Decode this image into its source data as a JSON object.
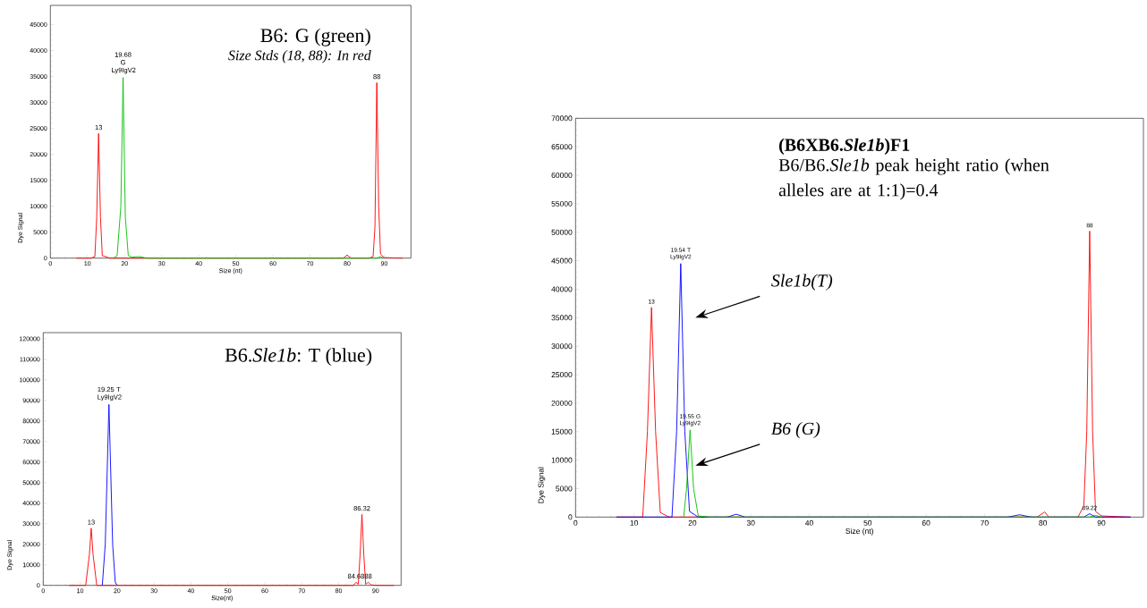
{
  "chart_data": [
    {
      "type": "line",
      "title": "B6: G (green)",
      "subtitle": "*Size Stds (18, 88): In red*",
      "xlabel": "Size (nt)",
      "ylabel": "Dye Signal",
      "xlim": [
        0,
        97.2
      ],
      "ylim": [
        0,
        48700
      ],
      "xticks": [
        0,
        10,
        20,
        30,
        40,
        50,
        60,
        70,
        80,
        90
      ],
      "yticks": [
        0,
        5000,
        10000,
        15000,
        20000,
        25000,
        30000,
        35000,
        40000,
        45000
      ],
      "annotations": [
        {
          "text": "13",
          "x": 13,
          "y": 24000
        },
        {
          "text": "19.68 G Ly9IgV2",
          "x": 19.6,
          "y": 34800
        },
        {
          "text": "88",
          "x": 88,
          "y": 33800
        }
      ],
      "series": [
        {
          "color": "#ff0000",
          "x": [
            7,
            11,
            12,
            12.5,
            13,
            13.5,
            14,
            16,
            79,
            80,
            81,
            86,
            87,
            87.5,
            88,
            88.5,
            89,
            90,
            95
          ],
          "values": [
            0,
            0,
            300,
            8000,
            24000,
            8000,
            500,
            0,
            0,
            600,
            0,
            0,
            300,
            6000,
            33800,
            10000,
            800,
            100,
            0
          ]
        },
        {
          "color": "#00c000",
          "x": [
            17,
            18,
            19,
            19.6,
            20.2,
            21,
            22,
            24,
            26,
            88,
            89,
            90
          ],
          "values": [
            0,
            500,
            10000,
            34800,
            8000,
            500,
            200,
            300,
            0,
            0,
            300,
            0
          ]
        }
      ]
    },
    {
      "type": "line",
      "title": "B6.*Sle1b*: T (blue)",
      "xlabel": "Size(nt)",
      "ylabel": "Dye Signal",
      "xlim": [
        0,
        96.9
      ],
      "ylim": [
        0,
        123000
      ],
      "xticks": [
        0,
        10,
        20,
        30,
        40,
        50,
        60,
        70,
        80,
        90
      ],
      "yticks": [
        0,
        10000,
        20000,
        30000,
        40000,
        50000,
        60000,
        70000,
        80000,
        90000,
        100000,
        110000,
        120000
      ],
      "annotations": [
        {
          "text": "13",
          "x": 13,
          "y": 27800
        },
        {
          "text": "19.25 T Ly9IgV2",
          "x": 17.8,
          "y": 88000
        },
        {
          "text": "84.68",
          "x": 84.7,
          "y": 1500
        },
        {
          "text": "86.32",
          "x": 86.3,
          "y": 34500
        },
        {
          "text": "88",
          "x": 88,
          "y": 1500
        }
      ],
      "series": [
        {
          "color": "#ff0000",
          "x": [
            7,
            11.5,
            12.5,
            13,
            13.5,
            14.5,
            80,
            84,
            84.7,
            85.3,
            85.8,
            86.3,
            86.8,
            87.3,
            88,
            88.7,
            90,
            95
          ],
          "values": [
            0,
            0,
            15000,
            27800,
            15000,
            0,
            0,
            0,
            1500,
            500,
            15000,
            34500,
            15000,
            500,
            1500,
            300,
            0,
            0
          ]
        },
        {
          "color": "#0000ff",
          "x": [
            16,
            16.8,
            17.8,
            18.8,
            19.5,
            20
          ],
          "values": [
            0,
            20000,
            88000,
            20000,
            1500,
            0
          ]
        }
      ]
    },
    {
      "type": "line",
      "title": "(B6XB6.*Sle1b*)F1",
      "subtitle": "B6/B6.*Sle1b* peak height  ratio (when  alleles are at 1:1)=0.4",
      "xlabel": "Size (nt)",
      "ylabel": "Dye Signal",
      "xlim": [
        0,
        97.2
      ],
      "ylim": [
        0,
        70000
      ],
      "xticks": [
        0,
        10,
        20,
        30,
        40,
        50,
        60,
        70,
        80,
        90
      ],
      "yticks": [
        0,
        5000,
        10000,
        15000,
        20000,
        25000,
        30000,
        35000,
        40000,
        45000,
        50000,
        55000,
        60000,
        65000,
        70000
      ],
      "annotations": [
        {
          "text": "13",
          "x": 13,
          "y": 36800
        },
        {
          "text": "19.54 T Ly9IgV2",
          "x": 18,
          "y": 44500
        },
        {
          "text": "19.55 G Ly9IgV2",
          "x": 19.6,
          "y": 15300
        },
        {
          "text": "88",
          "x": 88,
          "y": 50200
        },
        {
          "text": "89.22",
          "x": 88,
          "y": 600
        },
        "*Sle1b(T)*",
        "*B6 (G)*"
      ],
      "series": [
        {
          "color": "#ff0000",
          "x": [
            7,
            11.5,
            12.3,
            13,
            13.7,
            14.5,
            16,
            79,
            80.3,
            81,
            86,
            87,
            87.5,
            88,
            88.5,
            89,
            90,
            95
          ],
          "values": [
            0,
            0,
            15000,
            36800,
            15000,
            800,
            0,
            0,
            900,
            0,
            0,
            2000,
            15000,
            50200,
            15000,
            1000,
            200,
            0
          ]
        },
        {
          "color": "#0000ff",
          "x": [
            7,
            16.5,
            17.3,
            18,
            18.7,
            19.5,
            21,
            26,
            27.5,
            29,
            74,
            76,
            78,
            87,
            88,
            89,
            95
          ],
          "values": [
            0,
            0,
            15000,
            44500,
            15000,
            1000,
            0,
            0,
            500,
            0,
            0,
            400,
            0,
            0,
            600,
            0,
            0
          ]
        },
        {
          "color": "#00c000",
          "x": [
            18.5,
            19,
            19.6,
            20.2,
            21,
            23,
            88,
            89,
            90
          ],
          "values": [
            0,
            5000,
            15300,
            5000,
            200,
            0,
            0,
            300,
            0
          ]
        }
      ]
    }
  ]
}
